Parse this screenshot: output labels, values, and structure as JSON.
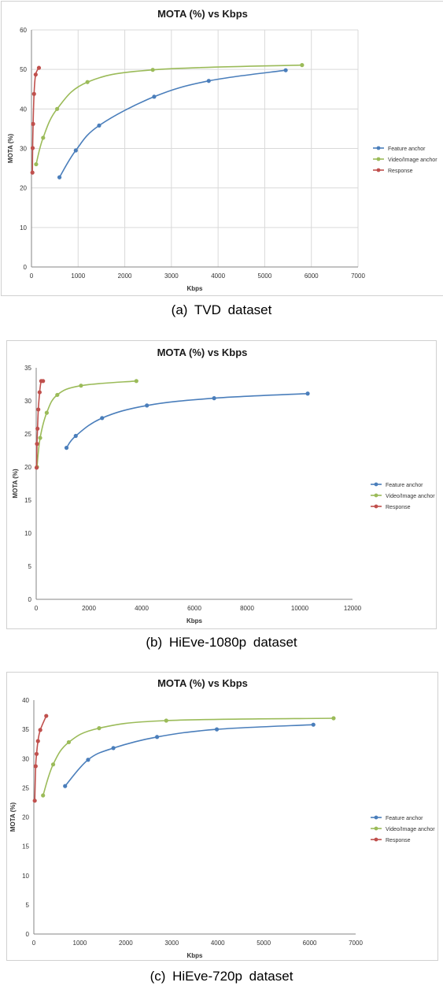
{
  "panels": [
    {
      "caption": "(a) TVD dataset",
      "chart_data": {
        "type": "line",
        "title": "MOTA (%) vs Kbps",
        "xlabel": "Kbps",
        "ylabel": "MOTA (%)",
        "xlim": [
          0,
          7000
        ],
        "ylim": [
          0,
          60
        ],
        "xticks": [
          0,
          1000,
          2000,
          3000,
          4000,
          5000,
          6000,
          7000
        ],
        "yticks": [
          0,
          10,
          20,
          30,
          40,
          50,
          60
        ],
        "grid": true,
        "legend": "right",
        "series": [
          {
            "name": "Feature anchor",
            "color": "#4a7ebb",
            "x": [
              600,
              950,
              1450,
              2630,
              3800,
              5450
            ],
            "y": [
              22.7,
              29.5,
              35.8,
              43.1,
              47.1,
              49.8
            ]
          },
          {
            "name": "Video/Image anchor",
            "color": "#9bbb59",
            "x": [
              100,
              250,
              550,
              1200,
              2600,
              5800
            ],
            "y": [
              26.0,
              32.7,
              40.0,
              46.8,
              49.9,
              51.1
            ]
          },
          {
            "name": "Response",
            "color": "#c0504d",
            "x": [
              20,
              25,
              35,
              55,
              90,
              160
            ],
            "y": [
              23.9,
              30.1,
              36.2,
              43.8,
              48.7,
              50.4
            ]
          }
        ]
      }
    },
    {
      "caption": "(b) HiEve-1080p dataset",
      "chart_data": {
        "type": "line",
        "title": "MOTA (%) vs Kbps",
        "xlabel": "Kbps",
        "ylabel": "MOTA (%)",
        "xlim": [
          0,
          12000
        ],
        "ylim": [
          0,
          35
        ],
        "xticks": [
          0,
          2000,
          4000,
          6000,
          8000,
          10000,
          12000
        ],
        "yticks": [
          0,
          5,
          10,
          15,
          20,
          25,
          30,
          35
        ],
        "grid": false,
        "legend": "right",
        "series": [
          {
            "name": "Feature anchor",
            "color": "#4a7ebb",
            "x": [
              1150,
              1500,
              2500,
              4200,
              6750,
              10300
            ],
            "y": [
              22.9,
              24.7,
              27.4,
              29.3,
              30.4,
              31.1
            ]
          },
          {
            "name": "Video/Image anchor",
            "color": "#9bbb59",
            "x": [
              30,
              150,
              400,
              800,
              1700,
              3800
            ],
            "y": [
              20.0,
              24.4,
              28.2,
              30.9,
              32.3,
              33.0
            ]
          },
          {
            "name": "Response",
            "color": "#c0504d",
            "x": [
              15,
              30,
              50,
              80,
              130,
              190,
              260
            ],
            "y": [
              19.9,
              23.5,
              25.8,
              28.7,
              31.3,
              33.0,
              33.0
            ]
          }
        ]
      }
    },
    {
      "caption": "(c) HiEve-720p dataset",
      "chart_data": {
        "type": "line",
        "title": "MOTA (%) vs Kbps",
        "xlabel": "Kbps",
        "ylabel": "MOTA (%)",
        "xlim": [
          0,
          7000
        ],
        "ylim": [
          0,
          40
        ],
        "xticks": [
          0,
          1000,
          2000,
          3000,
          4000,
          5000,
          6000,
          7000
        ],
        "yticks": [
          0,
          5,
          10,
          15,
          20,
          25,
          30,
          35,
          40
        ],
        "grid": false,
        "legend": "right",
        "series": [
          {
            "name": "Feature anchor",
            "color": "#4a7ebb",
            "x": [
              680,
              1180,
              1730,
              2680,
              3980,
              6080
            ],
            "y": [
              25.3,
              29.8,
              31.8,
              33.7,
              35.0,
              35.8
            ]
          },
          {
            "name": "Video/Image anchor",
            "color": "#9bbb59",
            "x": [
              200,
              420,
              760,
              1420,
              2880,
              6520
            ],
            "y": [
              23.7,
              29.0,
              32.8,
              35.2,
              36.5,
              36.9
            ]
          },
          {
            "name": "Response",
            "color": "#c0504d",
            "x": [
              20,
              40,
              60,
              90,
              140,
              270
            ],
            "y": [
              22.8,
              28.7,
              30.8,
              33.0,
              34.9,
              37.3
            ]
          }
        ]
      }
    }
  ]
}
